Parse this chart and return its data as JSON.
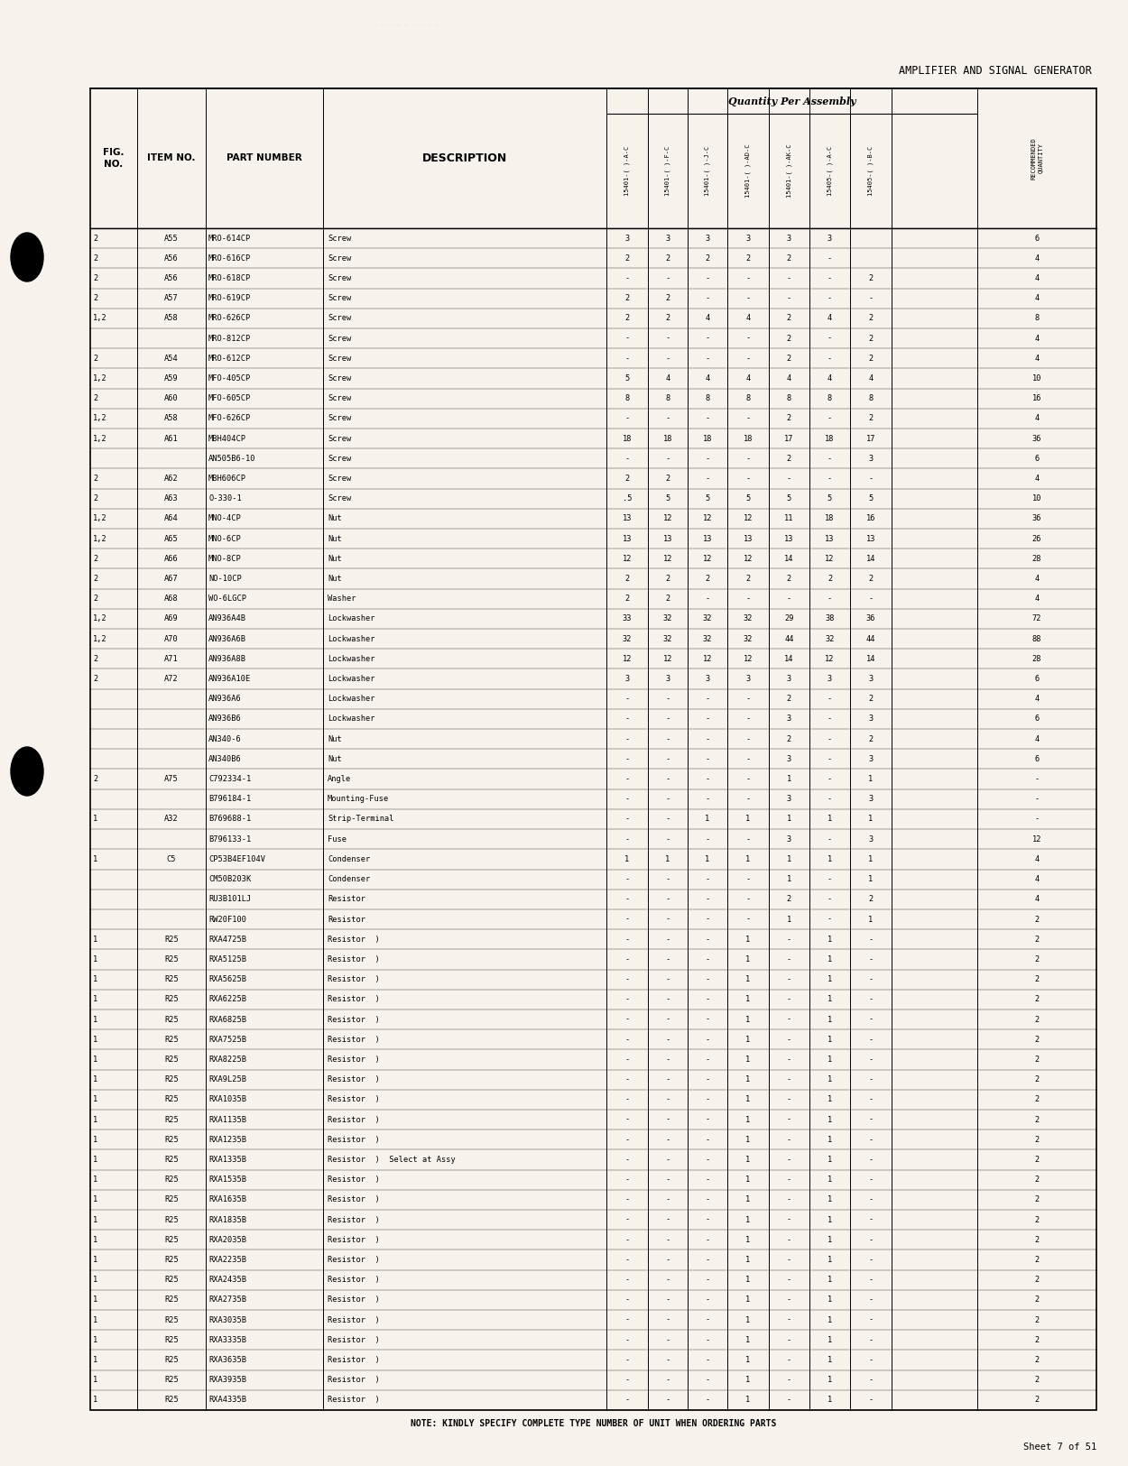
{
  "page_title": "AMPLIFIER AND SIGNAL GENERATOR",
  "sheet_label": "Sheet 7 of 51",
  "note": "NOTE: KINDLY SPECIFY COMPLETE TYPE NUMBER OF UNIT WHEN ORDERING PARTS",
  "bg_color": "#f7f3ec",
  "col_headers_rotated": [
    "15401-( )-A-C",
    "15401-( )-F-C",
    "15401-( )-J-C",
    "15401-( )-AD-C",
    "15401-( )-AK-C",
    "15405-( )-A-C",
    "15405-( )-B-C"
  ],
  "qty_header": "Quantity Per Assembly",
  "rows": [
    [
      "2",
      "A55",
      "MRO-614CP",
      "Screw",
      "3",
      "3",
      "3",
      "3",
      "3",
      "3",
      "",
      "6"
    ],
    [
      "2",
      "A56",
      "MRO-616CP",
      "Screw",
      "2",
      "2",
      "2",
      "2",
      "2",
      "-",
      "",
      "4"
    ],
    [
      "2",
      "A56",
      "MRO-618CP",
      "Screw",
      "-",
      "-",
      "-",
      "-",
      "-",
      "-",
      "2",
      "4"
    ],
    [
      "2",
      "A57",
      "MRO-619CP",
      "Screw",
      "2",
      "2",
      "-",
      "-",
      "-",
      "-",
      "-",
      "4"
    ],
    [
      "1,2",
      "A58",
      "MRO-626CP",
      "Screw",
      "2",
      "2",
      "4",
      "4",
      "2",
      "4",
      "2",
      "8"
    ],
    [
      "",
      "",
      "MRO-812CP",
      "Screw",
      "-",
      "-",
      "-",
      "-",
      "2",
      "-",
      "2",
      "4"
    ],
    [
      "2",
      "A54",
      "MRO-612CP",
      "Screw",
      "-",
      "-",
      "-",
      "-",
      "2",
      "-",
      "2",
      "4"
    ],
    [
      "1,2",
      "A59",
      "MFO-405CP",
      "Screw",
      "5",
      "4",
      "4",
      "4",
      "4",
      "4",
      "4",
      "10"
    ],
    [
      "2",
      "A60",
      "MFO-605CP",
      "Screw",
      "8",
      "8",
      "8",
      "8",
      "8",
      "8",
      "8",
      "16"
    ],
    [
      "1,2",
      "A58",
      "MFO-626CP",
      "Screw",
      "-",
      "-",
      "-",
      "-",
      "2",
      "-",
      "2",
      "4"
    ],
    [
      "1,2",
      "A61",
      "MBH404CP",
      "Screw",
      "18",
      "18",
      "18",
      "18",
      "17",
      "18",
      "17",
      "36"
    ],
    [
      "",
      "",
      "AN505B6-10",
      "Screw",
      "-",
      "-",
      "-",
      "-",
      "2",
      "-",
      "3",
      "6"
    ],
    [
      "2",
      "A62",
      "MBH606CP",
      "Screw",
      "2",
      "2",
      "-",
      "-",
      "-",
      "-",
      "-",
      "4"
    ],
    [
      "2",
      "A63",
      "O-330-1",
      "Screw",
      ".5",
      "5",
      "5",
      "5",
      "5",
      "5",
      "5",
      "10"
    ],
    [
      "1,2",
      "A64",
      "MNO-4CP",
      "Nut",
      "13",
      "12",
      "12",
      "12",
      "11",
      "18",
      "16",
      "36"
    ],
    [
      "1,2",
      "A65",
      "MNO-6CP",
      "Nut",
      "13",
      "13",
      "13",
      "13",
      "13",
      "13",
      "13",
      "26"
    ],
    [
      "2",
      "A66",
      "MNO-8CP",
      "Nut",
      "12",
      "12",
      "12",
      "12",
      "14",
      "12",
      "14",
      "28"
    ],
    [
      "2",
      "A67",
      "NO-10CP",
      "Nut",
      "2",
      "2",
      "2",
      "2",
      "2",
      "2",
      "2",
      "4"
    ],
    [
      "2",
      "A68",
      "WO-6LGCP",
      "Washer",
      "2",
      "2",
      "-",
      "-",
      "-",
      "-",
      "-",
      "4"
    ],
    [
      "1,2",
      "A69",
      "AN936A4B",
      "Lockwasher",
      "33",
      "32",
      "32",
      "32",
      "29",
      "38",
      "36",
      "72"
    ],
    [
      "1,2",
      "A70",
      "AN936A6B",
      "Lockwasher",
      "32",
      "32",
      "32",
      "32",
      "44",
      "32",
      "44",
      "88"
    ],
    [
      "2",
      "A71",
      "AN936A8B",
      "Lockwasher",
      "12",
      "12",
      "12",
      "12",
      "14",
      "12",
      "14",
      "28"
    ],
    [
      "2",
      "A72",
      "AN936A10E",
      "Lockwasher",
      "3",
      "3",
      "3",
      "3",
      "3",
      "3",
      "3",
      "6"
    ],
    [
      "",
      "",
      "AN936A6",
      "Lockwasher",
      "-",
      "-",
      "-",
      "-",
      "2",
      "-",
      "2",
      "4"
    ],
    [
      "",
      "",
      "AN936B6",
      "Lockwasher",
      "-",
      "-",
      "-",
      "-",
      "3",
      "-",
      "3",
      "6"
    ],
    [
      "",
      "",
      "AN340-6",
      "Nut",
      "-",
      "-",
      "-",
      "-",
      "2",
      "-",
      "2",
      "4"
    ],
    [
      "",
      "",
      "AN340B6",
      "Nut",
      "-",
      "-",
      "-",
      "-",
      "3",
      "-",
      "3",
      "6"
    ],
    [
      "2",
      "A75",
      "C792334-1",
      "Angle",
      "-",
      "-",
      "-",
      "-",
      "1",
      "-",
      "1",
      "-"
    ],
    [
      "",
      "",
      "B796184-1",
      "Mounting-Fuse",
      "-",
      "-",
      "-",
      "-",
      "3",
      "-",
      "3",
      "-"
    ],
    [
      "1",
      "A32",
      "B769688-1",
      "Strip-Terminal",
      "-",
      "-",
      "1",
      "1",
      "1",
      "1",
      "1",
      "-"
    ],
    [
      "",
      "",
      "B796133-1",
      "Fuse",
      "-",
      "-",
      "-",
      "-",
      "3",
      "-",
      "3",
      "12"
    ],
    [
      "1",
      "C5",
      "CP53B4EF104V",
      "Condenser",
      "1",
      "1",
      "1",
      "1",
      "1",
      "1",
      "1",
      "4"
    ],
    [
      "",
      "",
      "CM50B203K",
      "Condenser",
      "-",
      "-",
      "-",
      "-",
      "1",
      "-",
      "1",
      "4"
    ],
    [
      "",
      "",
      "RU3B101LJ",
      "Resistor",
      "-",
      "-",
      "-",
      "-",
      "2",
      "-",
      "2",
      "4"
    ],
    [
      "",
      "",
      "RW20F100",
      "Resistor",
      "-",
      "-",
      "-",
      "-",
      "1",
      "-",
      "1",
      "2"
    ],
    [
      "1",
      "R25",
      "RXA4725B",
      "Resistor  )",
      "-",
      "-",
      "-",
      "1",
      "-",
      "1",
      "-",
      "2"
    ],
    [
      "1",
      "R25",
      "RXA5125B",
      "Resistor  )",
      "-",
      "-",
      "-",
      "1",
      "-",
      "1",
      "-",
      "2"
    ],
    [
      "1",
      "R25",
      "RXA5625B",
      "Resistor  )",
      "-",
      "-",
      "-",
      "1",
      "-",
      "1",
      "-",
      "2"
    ],
    [
      "1",
      "R25",
      "RXA6225B",
      "Resistor  )",
      "-",
      "-",
      "-",
      "1",
      "-",
      "1",
      "-",
      "2"
    ],
    [
      "1",
      "R25",
      "RXA6825B",
      "Resistor  )",
      "-",
      "-",
      "-",
      "1",
      "-",
      "1",
      "-",
      "2"
    ],
    [
      "1",
      "R25",
      "RXA7525B",
      "Resistor  )",
      "-",
      "-",
      "-",
      "1",
      "-",
      "1",
      "-",
      "2"
    ],
    [
      "1",
      "R25",
      "RXA8225B",
      "Resistor  )",
      "-",
      "-",
      "-",
      "1",
      "-",
      "1",
      "-",
      "2"
    ],
    [
      "1",
      "R25",
      "RXA9L25B",
      "Resistor  )",
      "-",
      "-",
      "-",
      "1",
      "-",
      "1",
      "-",
      "2"
    ],
    [
      "1",
      "R25",
      "RXA1035B",
      "Resistor  )",
      "-",
      "-",
      "-",
      "1",
      "-",
      "1",
      "-",
      "2"
    ],
    [
      "1",
      "R25",
      "RXA1135B",
      "Resistor  )",
      "-",
      "-",
      "-",
      "1",
      "-",
      "1",
      "-",
      "2"
    ],
    [
      "1",
      "R25",
      "RXA1235B",
      "Resistor  )",
      "-",
      "-",
      "-",
      "1",
      "-",
      "1",
      "-",
      "2"
    ],
    [
      "1",
      "R25",
      "RXA1335B",
      "Resistor  )  Select at Assy",
      "-",
      "-",
      "-",
      "1",
      "-",
      "1",
      "-",
      "2"
    ],
    [
      "1",
      "R25",
      "RXA1535B",
      "Resistor  )",
      "-",
      "-",
      "-",
      "1",
      "-",
      "1",
      "-",
      "2"
    ],
    [
      "1",
      "R25",
      "RXA1635B",
      "Resistor  )",
      "-",
      "-",
      "-",
      "1",
      "-",
      "1",
      "-",
      "2"
    ],
    [
      "1",
      "R25",
      "RXA1835B",
      "Resistor  )",
      "-",
      "-",
      "-",
      "1",
      "-",
      "1",
      "-",
      "2"
    ],
    [
      "1",
      "R25",
      "RXA2035B",
      "Resistor  )",
      "-",
      "-",
      "-",
      "1",
      "-",
      "1",
      "-",
      "2"
    ],
    [
      "1",
      "R25",
      "RXA2235B",
      "Resistor  )",
      "-",
      "-",
      "-",
      "1",
      "-",
      "1",
      "-",
      "2"
    ],
    [
      "1",
      "R25",
      "RXA2435B",
      "Resistor  )",
      "-",
      "-",
      "-",
      "1",
      "-",
      "1",
      "-",
      "2"
    ],
    [
      "1",
      "R25",
      "RXA2735B",
      "Resistor  )",
      "-",
      "-",
      "-",
      "1",
      "-",
      "1",
      "-",
      "2"
    ],
    [
      "1",
      "R25",
      "RXA3035B",
      "Resistor  )",
      "-",
      "-",
      "-",
      "1",
      "-",
      "1",
      "-",
      "2"
    ],
    [
      "1",
      "R25",
      "RXA3335B",
      "Resistor  )",
      "-",
      "-",
      "-",
      "1",
      "-",
      "1",
      "-",
      "2"
    ],
    [
      "1",
      "R25",
      "RXA3635B",
      "Resistor  )",
      "-",
      "-",
      "-",
      "1",
      "-",
      "1",
      "-",
      "2"
    ],
    [
      "1",
      "R25",
      "RXA3935B",
      "Resistor  )",
      "-",
      "-",
      "-",
      "1",
      "-",
      "1",
      "-",
      "2"
    ],
    [
      "1",
      "R25",
      "RXA4335B",
      "Resistor  )",
      "-",
      "-",
      "-",
      "1",
      "-",
      "1",
      "-",
      "2"
    ]
  ]
}
